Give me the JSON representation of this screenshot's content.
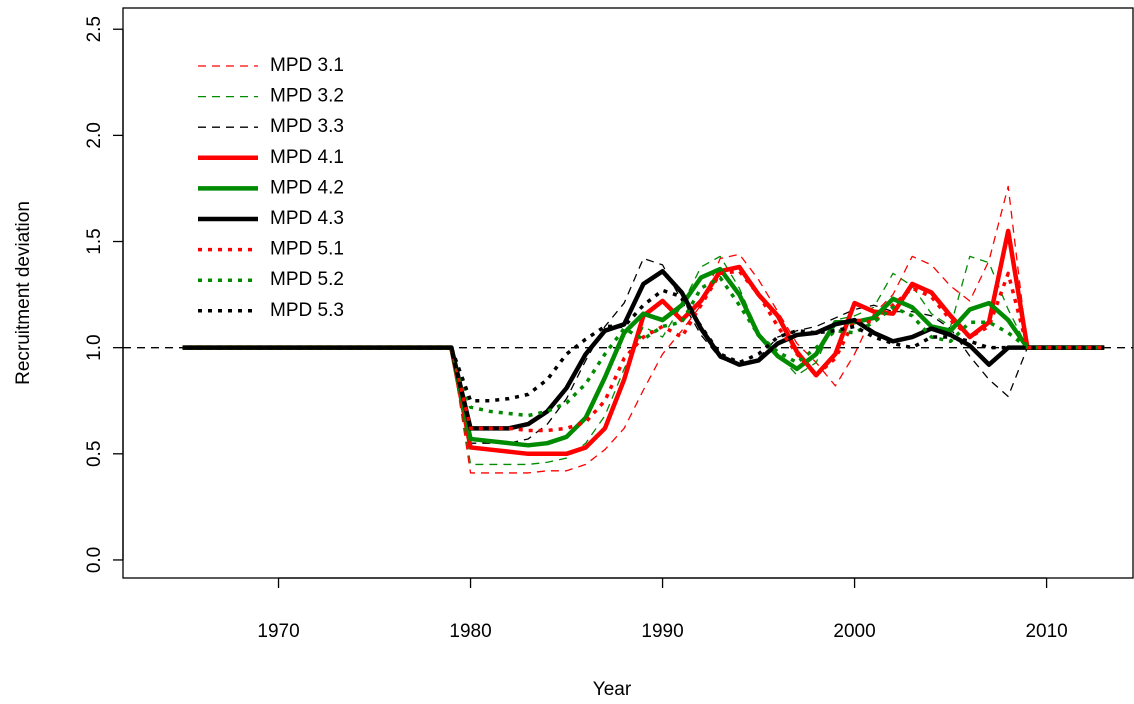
{
  "chart_data": {
    "type": "line",
    "xlabel": "Year",
    "ylabel": "Recruitment deviation",
    "x": [
      1965,
      1966,
      1967,
      1968,
      1969,
      1970,
      1971,
      1972,
      1973,
      1974,
      1975,
      1976,
      1977,
      1978,
      1979,
      1980,
      1981,
      1982,
      1983,
      1984,
      1985,
      1986,
      1987,
      1988,
      1989,
      1990,
      1991,
      1992,
      1993,
      1994,
      1995,
      1996,
      1997,
      1998,
      1999,
      2000,
      2001,
      2002,
      2003,
      2004,
      2005,
      2006,
      2007,
      2008,
      2009,
      2010,
      2011,
      2012,
      2013
    ],
    "xlim": [
      1961.9,
      2014.5
    ],
    "xticks": [
      1970,
      1980,
      1990,
      2000,
      2010
    ],
    "ylim": [
      -0.085,
      2.6
    ],
    "yticks": [
      {
        "value": 0,
        "label": "0.0"
      },
      0.5,
      {
        "value": 1,
        "label": "1.0"
      },
      1.5,
      {
        "value": 2,
        "label": "2.0"
      },
      2.5
    ],
    "hline": 1,
    "legend": "top-left",
    "series": [
      {
        "name": "MPD 3.1",
        "color": "#ff0000",
        "linestyle": "dashed",
        "linewidth": 1.3,
        "values": [
          1,
          1,
          1,
          1,
          1,
          1,
          1,
          1,
          1,
          1,
          1,
          1,
          1,
          1,
          1,
          0.41,
          0.41,
          0.41,
          0.41,
          0.42,
          0.42,
          0.45,
          0.52,
          0.62,
          0.8,
          0.97,
          1.08,
          1.2,
          1.42,
          1.44,
          1.32,
          1.17,
          1.02,
          0.93,
          0.82,
          0.97,
          1.16,
          1.25,
          1.43,
          1.39,
          1.29,
          1.22,
          1.41,
          1.76,
          1,
          1,
          1,
          1,
          1
        ]
      },
      {
        "name": "MPD 3.2",
        "color": "#008b00",
        "linestyle": "dashed",
        "linewidth": 1.3,
        "values": [
          1,
          1,
          1,
          1,
          1,
          1,
          1,
          1,
          1,
          1,
          1,
          1,
          1,
          1,
          1,
          0.45,
          0.45,
          0.45,
          0.45,
          0.46,
          0.48,
          0.55,
          0.68,
          0.9,
          1.1,
          1.05,
          1.2,
          1.38,
          1.43,
          1.28,
          1.07,
          0.97,
          0.87,
          0.93,
          1.13,
          1.15,
          1.19,
          1.35,
          1.29,
          1.16,
          1.1,
          1.43,
          1.4,
          1.18,
          1,
          1,
          1,
          1,
          1
        ]
      },
      {
        "name": "MPD 3.3",
        "color": "#000000",
        "linestyle": "dashed",
        "linewidth": 1.3,
        "values": [
          1,
          1,
          1,
          1,
          1,
          1,
          1,
          1,
          1,
          1,
          1,
          1,
          1,
          1,
          1,
          0.55,
          0.55,
          0.55,
          0.57,
          0.64,
          0.76,
          0.94,
          1.1,
          1.21,
          1.42,
          1.39,
          1.22,
          1.06,
          0.95,
          0.92,
          0.95,
          1.05,
          1.08,
          1.1,
          1.14,
          1.18,
          1.2,
          1.17,
          1.17,
          1.15,
          1.09,
          0.96,
          0.85,
          0.77,
          1,
          1,
          1,
          1,
          1
        ]
      },
      {
        "name": "MPD 4.1",
        "color": "#ff0000",
        "linestyle": "solid",
        "linewidth": 4.5,
        "values": [
          1,
          1,
          1,
          1,
          1,
          1,
          1,
          1,
          1,
          1,
          1,
          1,
          1,
          1,
          1,
          0.53,
          0.52,
          0.51,
          0.5,
          0.5,
          0.5,
          0.53,
          0.62,
          0.85,
          1.15,
          1.22,
          1.13,
          1.22,
          1.36,
          1.38,
          1.25,
          1.15,
          0.98,
          0.87,
          0.97,
          1.21,
          1.17,
          1.16,
          1.3,
          1.26,
          1.15,
          1.05,
          1.12,
          1.55,
          1,
          1,
          1,
          1,
          1
        ]
      },
      {
        "name": "MPD 4.2",
        "color": "#008b00",
        "linestyle": "solid",
        "linewidth": 4.5,
        "values": [
          1,
          1,
          1,
          1,
          1,
          1,
          1,
          1,
          1,
          1,
          1,
          1,
          1,
          1,
          1,
          0.57,
          0.56,
          0.55,
          0.54,
          0.55,
          0.58,
          0.67,
          0.86,
          1.07,
          1.16,
          1.13,
          1.2,
          1.33,
          1.37,
          1.25,
          1.06,
          0.96,
          0.9,
          0.97,
          1.12,
          1.12,
          1.14,
          1.23,
          1.19,
          1.1,
          1.08,
          1.18,
          1.21,
          1.13,
          1,
          1,
          1,
          1,
          1
        ]
      },
      {
        "name": "MPD 4.3",
        "color": "#000000",
        "linestyle": "solid",
        "linewidth": 4.5,
        "values": [
          1,
          1,
          1,
          1,
          1,
          1,
          1,
          1,
          1,
          1,
          1,
          1,
          1,
          1,
          1,
          0.62,
          0.62,
          0.62,
          0.64,
          0.7,
          0.81,
          0.97,
          1.08,
          1.11,
          1.3,
          1.36,
          1.26,
          1.09,
          0.96,
          0.92,
          0.94,
          1.02,
          1.06,
          1.07,
          1.11,
          1.13,
          1.07,
          1.03,
          1.05,
          1.09,
          1.06,
          1.01,
          0.92,
          1.0,
          1,
          1,
          1,
          1,
          1
        ]
      },
      {
        "name": "MPD 5.1",
        "color": "#ff0000",
        "linestyle": "dotted",
        "linewidth": 3.5,
        "values": [
          1,
          1,
          1,
          1,
          1,
          1,
          1,
          1,
          1,
          1,
          1,
          1,
          1,
          1,
          1,
          0.62,
          0.62,
          0.62,
          0.61,
          0.61,
          0.62,
          0.65,
          0.75,
          0.95,
          1.05,
          1.1,
          1.05,
          1.2,
          1.35,
          1.36,
          1.25,
          1.1,
          0.97,
          0.87,
          0.95,
          1.13,
          1.12,
          1.2,
          1.28,
          1.24,
          1.13,
          1.05,
          1.1,
          1.35,
          1,
          1,
          1,
          1,
          1
        ]
      },
      {
        "name": "MPD 5.2",
        "color": "#008b00",
        "linestyle": "dotted",
        "linewidth": 3.5,
        "values": [
          1,
          1,
          1,
          1,
          1,
          1,
          1,
          1,
          1,
          1,
          1,
          1,
          1,
          1,
          1,
          0.72,
          0.7,
          0.69,
          0.68,
          0.7,
          0.74,
          0.83,
          0.97,
          1.09,
          1.04,
          1.1,
          1.12,
          1.28,
          1.33,
          1.2,
          1.06,
          0.98,
          0.93,
          1.0,
          1.08,
          1.07,
          1.12,
          1.19,
          1.15,
          1.05,
          1.03,
          1.12,
          1.12,
          1.07,
          1,
          1,
          1,
          1,
          1
        ]
      },
      {
        "name": "MPD 5.3",
        "color": "#000000",
        "linestyle": "dotted",
        "linewidth": 3.5,
        "values": [
          1,
          1,
          1,
          1,
          1,
          1,
          1,
          1,
          1,
          1,
          1,
          1,
          1,
          1,
          1,
          0.75,
          0.75,
          0.76,
          0.78,
          0.85,
          0.97,
          1.04,
          1.1,
          1.1,
          1.2,
          1.27,
          1.24,
          1.1,
          0.97,
          0.93,
          0.97,
          1.05,
          1.08,
          1.07,
          1.08,
          1.1,
          1.05,
          1.02,
          1.0,
          1.05,
          1.05,
          1.03,
          1.0,
          1.0,
          1,
          1,
          1,
          1,
          1
        ]
      }
    ]
  }
}
